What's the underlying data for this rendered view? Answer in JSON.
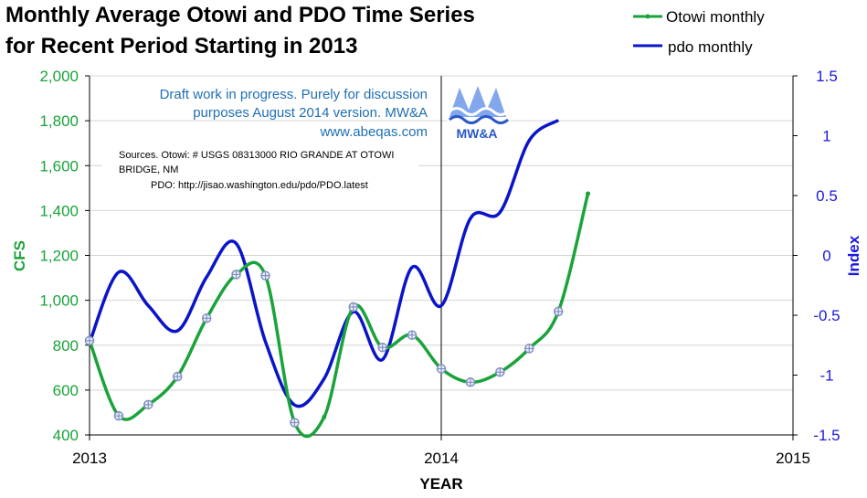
{
  "chart_data": {
    "type": "line",
    "title_lines": [
      "Monthly Average Otowi and PDO Time Series",
      "for Recent Period Starting in 2013"
    ],
    "xlabel": "YEAR",
    "ylabel": "CFS",
    "y2label": "Index",
    "xlim": [
      2013,
      2015
    ],
    "ylim": [
      400,
      2000
    ],
    "y2lim": [
      -1.5,
      1.5
    ],
    "x_ticks": [
      "2013",
      "2014",
      "2015"
    ],
    "y_ticks": [
      "400",
      "600",
      "800",
      "1,000",
      "1,200",
      "1,400",
      "1,600",
      "1,800",
      "2,000"
    ],
    "y2_ticks": [
      "-1.5",
      "-1",
      "-0.5",
      "0",
      "0.5",
      "1",
      "1.5"
    ],
    "grid": "horizontal",
    "legend_position": "top-right",
    "vline_x": 2014,
    "series": [
      {
        "name": "Otowi monthly",
        "axis": "left",
        "color": "#1aa33a",
        "x": [
          2013.0,
          2013.083,
          2013.167,
          2013.25,
          2013.333,
          2013.417,
          2013.5,
          2013.583,
          2013.667,
          2013.75,
          2013.833,
          2013.917,
          2014.0,
          2014.083,
          2014.167,
          2014.25,
          2014.333,
          2014.417
        ],
        "values": [
          820,
          485,
          535,
          660,
          920,
          1115,
          1110,
          455,
          480,
          970,
          790,
          845,
          695,
          635,
          680,
          785,
          950,
          1475
        ],
        "marked": [
          true,
          true,
          true,
          true,
          true,
          true,
          true,
          true,
          false,
          true,
          true,
          true,
          true,
          true,
          true,
          true,
          true,
          false
        ]
      },
      {
        "name": "pdo monthly",
        "axis": "right",
        "color": "#0a14c8",
        "x": [
          2013.0,
          2013.083,
          2013.167,
          2013.25,
          2013.333,
          2013.417,
          2013.5,
          2013.583,
          2013.667,
          2013.75,
          2013.833,
          2013.917,
          2014.0,
          2014.083,
          2014.167,
          2014.25,
          2014.333
        ],
        "values": [
          -0.73,
          -0.14,
          -0.42,
          -0.63,
          -0.18,
          0.1,
          -0.72,
          -1.25,
          -1.03,
          -0.47,
          -0.87,
          -0.1,
          -0.42,
          0.31,
          0.36,
          0.96,
          1.13
        ]
      }
    ],
    "annotations": {
      "draft_note": [
        "Draft work in progress.  Purely for discussion",
        "purposes August 2014 version.  MW&A",
        "www.abeqas.com"
      ],
      "sources": [
        "Sources. Otowi:  #    USGS 08313000 RIO GRANDE AT OTOWI",
        "BRIDGE, NM",
        "PDO:     http://jisao.washington.edu/pdo/PDO.latest"
      ],
      "logo_text": "MW&A"
    }
  },
  "colors": {
    "left_axis": "#1aa33a",
    "right_axis": "#1a1adc",
    "grid": "#d4d4d4",
    "note": "#1f6fb5",
    "marker": "#7f8fc0",
    "logo_blue": "#2a57c7"
  }
}
